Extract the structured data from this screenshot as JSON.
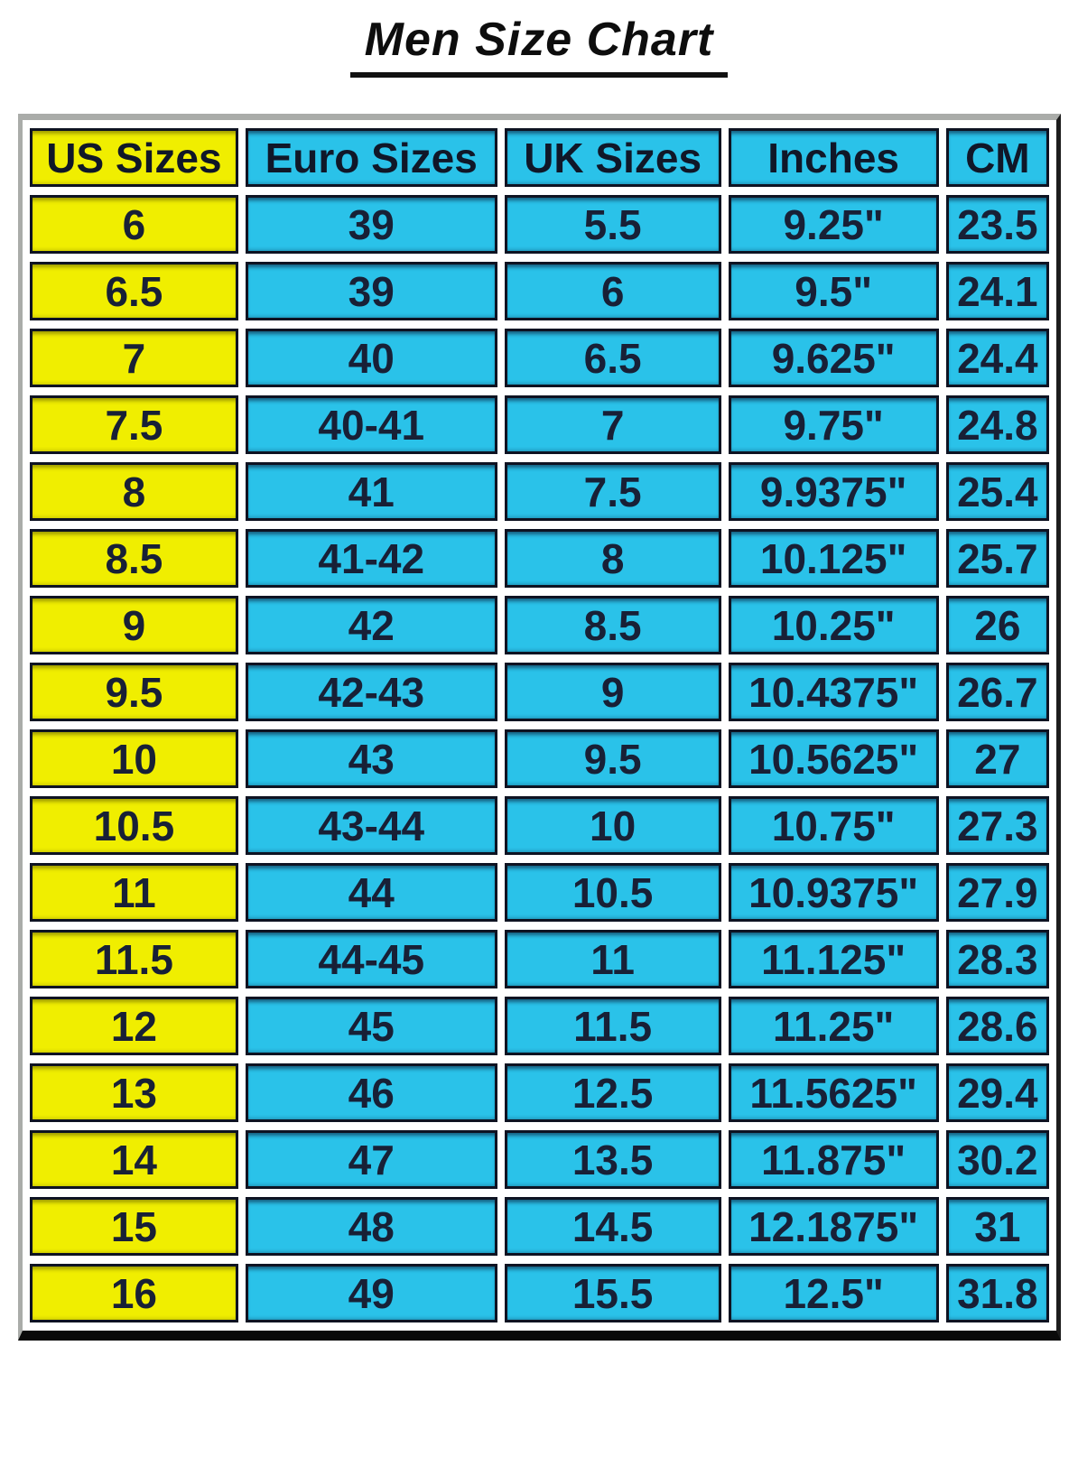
{
  "page": {
    "title": "Men Size Chart"
  },
  "colors": {
    "yellow_column": "#f0ee00",
    "cyan_cells": "#2ac2e9",
    "cell_text": "#182036",
    "cell_border": "#0e1322",
    "frame_grey": "#aaaca9",
    "frame_dark": "#0a0a0a",
    "page_background": "#ffffff"
  },
  "chart_data": {
    "type": "table",
    "title": "Men Size Chart",
    "columns": [
      "US Sizes",
      "Euro Sizes",
      "UK Sizes",
      "Inches",
      "CM"
    ],
    "rows": [
      [
        "6",
        "39",
        "5.5",
        "9.25\"",
        "23.5"
      ],
      [
        "6.5",
        "39",
        "6",
        "9.5\"",
        "24.1"
      ],
      [
        "7",
        "40",
        "6.5",
        "9.625\"",
        "24.4"
      ],
      [
        "7.5",
        "40-41",
        "7",
        "9.75\"",
        "24.8"
      ],
      [
        "8",
        "41",
        "7.5",
        "9.9375\"",
        "25.4"
      ],
      [
        "8.5",
        "41-42",
        "8",
        "10.125\"",
        "25.7"
      ],
      [
        "9",
        "42",
        "8.5",
        "10.25\"",
        "26"
      ],
      [
        "9.5",
        "42-43",
        "9",
        "10.4375\"",
        "26.7"
      ],
      [
        "10",
        "43",
        "9.5",
        "10.5625\"",
        "27"
      ],
      [
        "10.5",
        "43-44",
        "10",
        "10.75\"",
        "27.3"
      ],
      [
        "11",
        "44",
        "10.5",
        "10.9375\"",
        "27.9"
      ],
      [
        "11.5",
        "44-45",
        "11",
        "11.125\"",
        "28.3"
      ],
      [
        "12",
        "45",
        "11.5",
        "11.25\"",
        "28.6"
      ],
      [
        "13",
        "46",
        "12.5",
        "11.5625\"",
        "29.4"
      ],
      [
        "14",
        "47",
        "13.5",
        "11.875\"",
        "30.2"
      ],
      [
        "15",
        "48",
        "14.5",
        "12.1875\"",
        "31"
      ],
      [
        "16",
        "49",
        "15.5",
        "12.5\"",
        "31.8"
      ]
    ],
    "layout": {
      "column_width_pct": [
        20.2,
        24.4,
        21.0,
        20.4,
        10.0
      ],
      "first_column_color": "yellow",
      "other_columns_color": "cyan"
    }
  }
}
